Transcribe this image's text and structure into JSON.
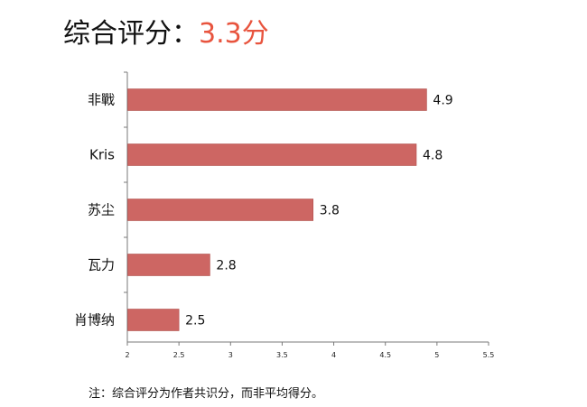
{
  "title": {
    "prefix": "综合评分：",
    "score": "3.3分"
  },
  "footnote": "注：综合评分为作者共识分，而非平均得分。",
  "colors": {
    "bar": "#cd6663",
    "bar_border": "#b0504d",
    "score_accent": "#e8543e",
    "axis": "#7a7a7a"
  },
  "chart_data": {
    "type": "bar",
    "orientation": "horizontal",
    "categories": [
      "非戰",
      "Kris",
      "苏尘",
      "瓦力",
      "肖博纳"
    ],
    "values": [
      4.9,
      4.8,
      3.8,
      2.8,
      2.5
    ],
    "value_labels": [
      "4.9",
      "4.8",
      "3.8",
      "2.8",
      "2.5"
    ],
    "xlim": [
      2,
      5.5
    ],
    "xticks": [
      2,
      2.5,
      3,
      3.5,
      4,
      4.5,
      5,
      5.5
    ],
    "xtick_labels": [
      "2",
      "2.5",
      "3",
      "3.5",
      "4",
      "4.5",
      "5",
      "5.5"
    ],
    "grid": false,
    "legend": "none"
  }
}
